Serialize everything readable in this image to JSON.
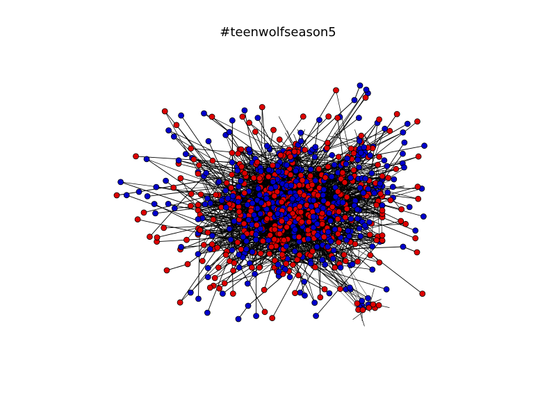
{
  "figure": {
    "title": "#teenwolfseason5"
  },
  "graph": {
    "type": "network",
    "node_colors": [
      "#0000cc",
      "#dd0000"
    ],
    "node_stroke": "#000000",
    "edge_color": "#000000"
  }
}
